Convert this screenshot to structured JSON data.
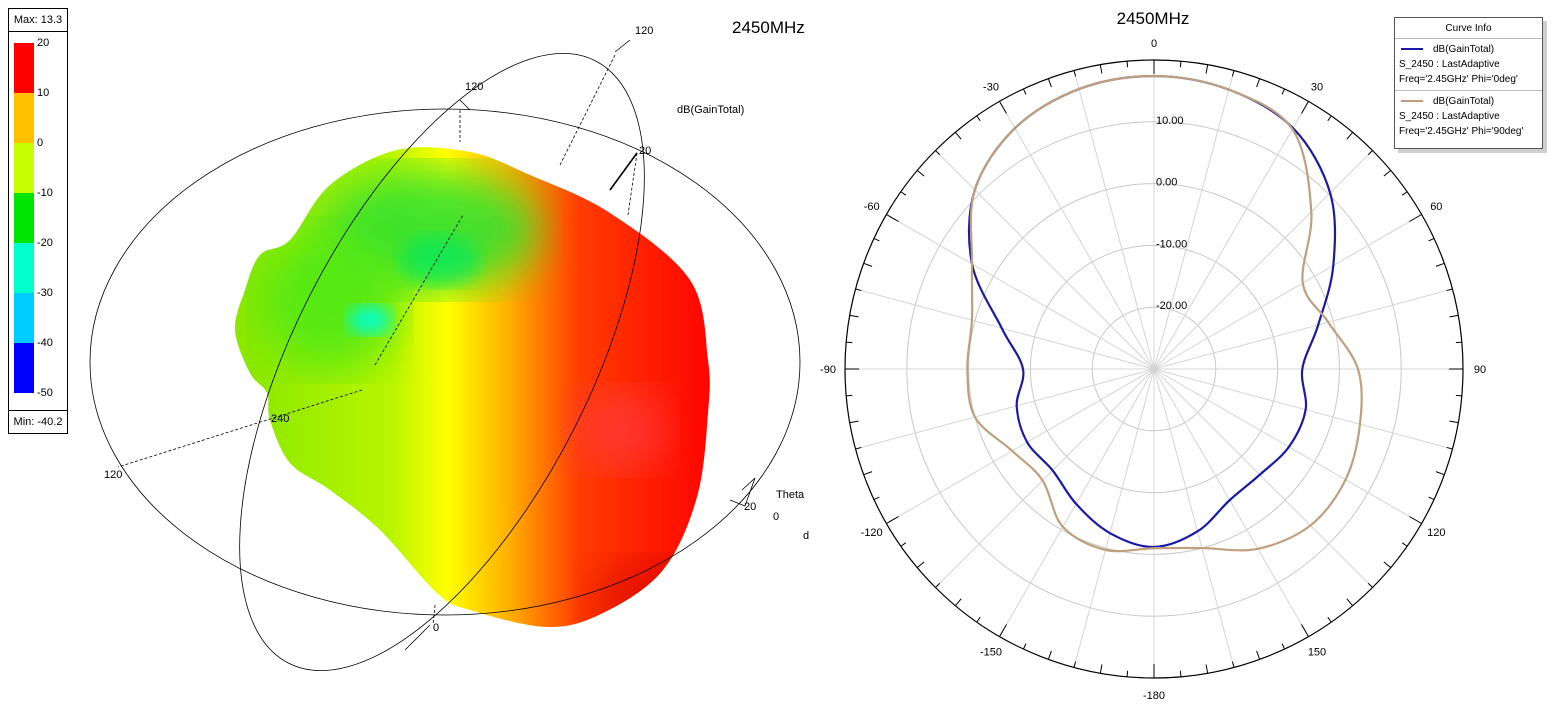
{
  "colorbar": {
    "max_label": "Max: 13.3",
    "min_label": "Min: -40.2",
    "ticks": [
      "20",
      "10",
      "0",
      "-10",
      "-20",
      "-30",
      "-40",
      "-50"
    ],
    "colors": [
      "#ff0000",
      "#ffc000",
      "#c8ff00",
      "#00e600",
      "#00ffcc",
      "#00ccff",
      "#0000ff"
    ]
  },
  "plot3d": {
    "title": "2450MHz",
    "quantity_label": "dB(GainTotal)",
    "axis_labels": [
      "120",
      "120",
      "20",
      "240",
      "120",
      "0",
      "20",
      "0"
    ],
    "theta_label": "Theta",
    "clipped_label": "d"
  },
  "chart_data": {
    "type": "polar",
    "title": "2450MHz",
    "angle_unit": "deg",
    "angle_labels": [
      "0",
      "30",
      "60",
      "90",
      "120",
      "150",
      "-180",
      "-150",
      "-120",
      "-90",
      "-60",
      "-30"
    ],
    "radial_range": [
      -30,
      20
    ],
    "radial_tick_labels": [
      "10.00",
      "0.00",
      "-10.00",
      "-20.00"
    ],
    "radial_ticks": [
      10,
      0,
      -10,
      -20
    ],
    "grid": true,
    "legend_position": "top-right",
    "theta": [
      0,
      15,
      30,
      45,
      60,
      75,
      90,
      105,
      120,
      135,
      150,
      165,
      180,
      -165,
      -150,
      -135,
      -120,
      -105,
      -90,
      -75,
      -60,
      -45,
      -30,
      -15
    ],
    "series": [
      {
        "name": "dB(GainTotal)",
        "setup": "S_2450 : LastAdaptive",
        "condition": "Freq='2.45GHz' Phi='0deg'",
        "color": "#1a1aa8",
        "values": [
          17.4,
          16.8,
          15.0,
          10.3,
          3.5,
          -2.5,
          -6.0,
          -4.6,
          -4.8,
          -5.8,
          -5.5,
          -2.8,
          -1.2,
          -2.5,
          -4.8,
          -6.8,
          -6.3,
          -7.0,
          -8.8,
          -4.5,
          4.0,
          11.0,
          15.0,
          16.9
        ]
      },
      {
        "name": "dB(GainTotal)",
        "setup": "S_2450 : LastAdaptive",
        "condition": "Freq='2.45GHz' Phi='90deg'",
        "color": "#c0a07c",
        "values": [
          17.4,
          16.8,
          14.8,
          6.0,
          -2.2,
          -0.8,
          3.0,
          4.5,
          5.8,
          5.8,
          3.6,
          0.0,
          -1.0,
          0.3,
          -0.5,
          -4.5,
          -3.5,
          0.0,
          0.2,
          0.5,
          4.0,
          11.0,
          15.0,
          16.9
        ]
      }
    ]
  },
  "legend": {
    "title": "Curve Info"
  }
}
